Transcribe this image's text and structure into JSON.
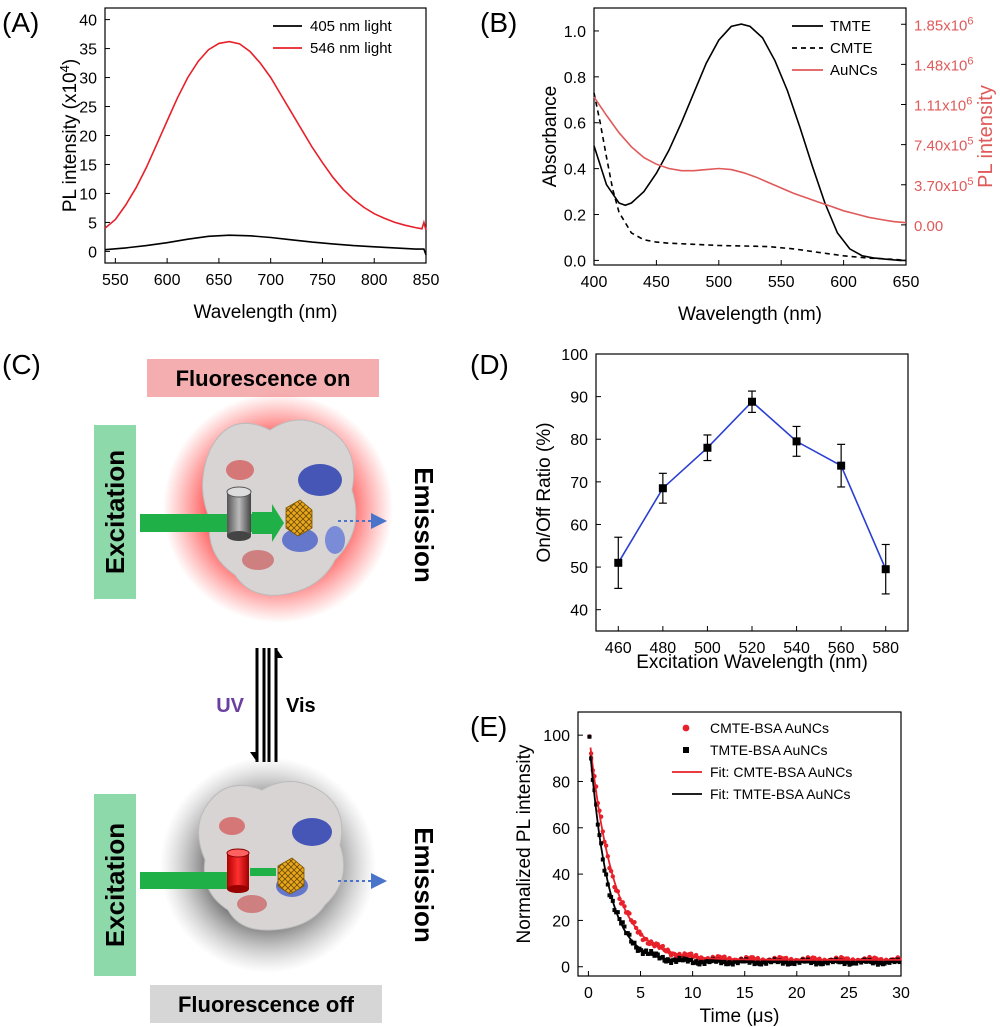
{
  "panels": {
    "A": {
      "label": "(A)",
      "chart_data": {
        "type": "line",
        "xlabel": "Wavelength (nm)",
        "ylabel": "PL intensity (x10",
        "ylabel_sup": "4",
        "ylabel_end": ")",
        "xlim": [
          540,
          850
        ],
        "ylim": [
          -2,
          42
        ],
        "xticks": [
          550,
          600,
          650,
          700,
          750,
          800,
          850
        ],
        "yticks": [
          0,
          5,
          10,
          15,
          20,
          25,
          30,
          35,
          40
        ],
        "legend_position": "top-right",
        "series": [
          {
            "name": "405 nm light",
            "color": "#000000",
            "x": [
              540,
              560,
              580,
              600,
              620,
              640,
              660,
              680,
              700,
              720,
              740,
              760,
              780,
              800,
              820,
              840,
              848,
              850
            ],
            "y": [
              0.3,
              0.6,
              1.0,
              1.5,
              2.1,
              2.6,
              2.8,
              2.7,
              2.4,
              2.0,
              1.6,
              1.3,
              1.0,
              0.8,
              0.6,
              0.4,
              0.4,
              -0.6
            ]
          },
          {
            "name": "546 nm light",
            "color": "#e8202a",
            "x": [
              540,
              550,
              560,
              570,
              580,
              590,
              600,
              610,
              620,
              630,
              640,
              650,
              660,
              670,
              680,
              690,
              700,
              710,
              720,
              730,
              740,
              750,
              760,
              770,
              780,
              790,
              800,
              810,
              820,
              830,
              840,
              846,
              848,
              850
            ],
            "y": [
              4.0,
              5.5,
              8.0,
              11.0,
              14.5,
              18.5,
              22.5,
              26.5,
              30.0,
              32.8,
              34.8,
              35.9,
              36.2,
              35.8,
              34.5,
              32.5,
              30.0,
              27.0,
              24.0,
              21.0,
              18.0,
              15.3,
              12.8,
              10.7,
              9.0,
              7.6,
              6.5,
              5.7,
              5.0,
              4.5,
              4.1,
              3.9,
              5.0,
              3.7
            ]
          }
        ]
      }
    },
    "B": {
      "label": "(B)",
      "chart_data": {
        "type": "line",
        "xlabel": "Wavelength (nm)",
        "ylabel": "Absorbance",
        "y2label": "PL intensity",
        "xlim": [
          400,
          650
        ],
        "ylim": [
          -0.02,
          1.1
        ],
        "xticks": [
          400,
          450,
          500,
          550,
          600,
          650
        ],
        "yticks": [
          0.0,
          0.2,
          0.4,
          0.6,
          0.8,
          1.0
        ],
        "y2lim": [
          -370000.0,
          2000000.0
        ],
        "y2ticks": [
          {
            "value": 0,
            "label": "0.00"
          },
          {
            "value": 370000,
            "mant": "3.70x10",
            "exp": "5"
          },
          {
            "value": 740000,
            "mant": "7.40x10",
            "exp": "5"
          },
          {
            "value": 1110000,
            "mant": "1.11x10",
            "exp": "6"
          },
          {
            "value": 1480000,
            "mant": "1.48x10",
            "exp": "6"
          },
          {
            "value": 1850000,
            "mant": "1.85x10",
            "exp": "6"
          }
        ],
        "legend_position": "top-right",
        "series": [
          {
            "name": "TMTE",
            "color": "#000000",
            "dash": "none",
            "axis": "left",
            "x": [
              400,
              410,
              420,
              425,
              430,
              440,
              450,
              460,
              470,
              480,
              490,
              500,
              510,
              518,
              525,
              535,
              545,
              555,
              565,
              575,
              585,
              595,
              605,
              615,
              625,
              635,
              645,
              650
            ],
            "y": [
              0.5,
              0.33,
              0.25,
              0.24,
              0.25,
              0.3,
              0.38,
              0.48,
              0.6,
              0.73,
              0.86,
              0.96,
              1.02,
              1.03,
              1.02,
              0.97,
              0.87,
              0.74,
              0.58,
              0.41,
              0.25,
              0.12,
              0.05,
              0.02,
              0.01,
              0.005,
              0.0,
              0.0
            ]
          },
          {
            "name": "CMTE",
            "color": "#000000",
            "dash": "5 4",
            "axis": "left",
            "x": [
              400,
              405,
              410,
              415,
              420,
              430,
              440,
              450,
              460,
              480,
              500,
              520,
              540,
              560,
              580,
              600,
              620,
              640,
              650
            ],
            "y": [
              0.73,
              0.6,
              0.45,
              0.31,
              0.21,
              0.12,
              0.09,
              0.08,
              0.075,
              0.07,
              0.065,
              0.063,
              0.06,
              0.05,
              0.035,
              0.02,
              0.01,
              0.005,
              0.0
            ]
          },
          {
            "name": "AuNCs",
            "color": "#e05a5a",
            "dash": "none",
            "axis": "right",
            "x": [
              400,
              410,
              420,
              430,
              440,
              450,
              460,
              470,
              480,
              490,
              500,
              510,
              520,
              530,
              540,
              550,
              560,
              570,
              580,
              590,
              600,
              610,
              620,
              630,
              640,
              650
            ],
            "y": [
              1180000,
              1010000,
              850000,
              720000,
              620000,
              560000,
              520000,
              500000,
              500000,
              510000,
              520000,
              510000,
              480000,
              440000,
              390000,
              340000,
              290000,
              250000,
              210000,
              170000,
              130000,
              100000,
              70000,
              50000,
              30000,
              20000
            ]
          }
        ]
      }
    },
    "C": {
      "label": "(C)",
      "fluorescence_on": "Fluorescence on",
      "fluorescence_off": "Fluorescence off",
      "excitation": "Excitation",
      "emission": "Emission",
      "uv": "UV",
      "vis": "Vis",
      "colors": {
        "on_banner": "#f5aeb0",
        "off_banner": "#d6d6d6",
        "excitation_box": "#8ed9a9",
        "arrow": "#1fb148",
        "uv_text": "#6b3fa0",
        "emission_arrow": "#4a74c9",
        "glow_on": "#ff1010",
        "glow_off": "#333333"
      }
    },
    "D": {
      "label": "(D)",
      "chart_data": {
        "type": "line",
        "xlabel": "Excitation Wavelength (nm)",
        "ylabel": "On/Off Ratio (%)",
        "xlim": [
          450,
          590
        ],
        "ylim": [
          35,
          100
        ],
        "xticks": [
          460,
          480,
          500,
          520,
          540,
          560,
          580
        ],
        "yticks": [
          40,
          50,
          60,
          70,
          80,
          90,
          100
        ],
        "series": [
          {
            "color": "#2a3fd1",
            "x": [
              460,
              480,
              500,
              520,
              540,
              560,
              580
            ],
            "y": [
              51.0,
              68.5,
              78.0,
              88.8,
              79.5,
              73.8,
              49.5
            ],
            "err": [
              6.0,
              3.5,
              3.0,
              2.5,
              3.5,
              5.0,
              5.8
            ]
          }
        ]
      }
    },
    "E": {
      "label": "(E)",
      "chart_data": {
        "type": "scatter",
        "xlabel": "Time (μs)",
        "ylabel": "Normalized PL intensity",
        "xlim": [
          -1,
          30
        ],
        "ylim": [
          -4,
          110
        ],
        "xticks": [
          0,
          5,
          10,
          15,
          20,
          25,
          30
        ],
        "yticks": [
          0,
          20,
          40,
          60,
          80,
          100
        ],
        "legend_position": "top-right",
        "series": [
          {
            "name": "CMTE-BSA AuNCs",
            "kind": "points",
            "marker": "circle",
            "color": "#e8202a",
            "A": 100,
            "tau": 2.3,
            "c": 3
          },
          {
            "name": "TMTE-BSA AuNCs",
            "kind": "points",
            "marker": "square",
            "color": "#000000",
            "A": 100,
            "tau": 1.75,
            "c": 2
          },
          {
            "name": "Fit: CMTE-BSA AuNCs",
            "kind": "line",
            "color": "#e8202a",
            "A": 100,
            "tau": 2.3,
            "c": 3
          },
          {
            "name": "Fit: TMTE-BSA AuNCs",
            "kind": "line",
            "color": "#000000",
            "A": 100,
            "tau": 1.75,
            "c": 2
          }
        ]
      }
    }
  }
}
